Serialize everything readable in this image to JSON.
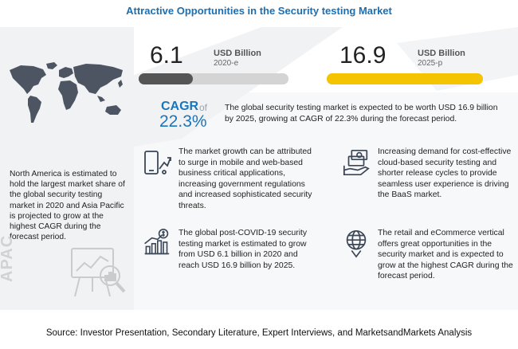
{
  "title": "Attractive Opportunities in the Security testing Market",
  "left": {
    "note": "North America is estimated to hold the largest market share of the global security testing market in 2020 and Asia Pacific is projected to grow at the highest CAGR during the forecast period.",
    "region_label": "APAC"
  },
  "metrics": {
    "start": {
      "value": "6.1",
      "unit": "USD Billion",
      "year": "2020-e",
      "bar_fraction": 0.361,
      "color": "#555555"
    },
    "end": {
      "value": "16.9",
      "unit": "USD Billion",
      "year": "2025-p",
      "bar_fraction": 1.0,
      "color": "#f5c400"
    }
  },
  "cagr": {
    "label": "CAGR",
    "of": "of",
    "value": "22.3%",
    "note": "The global security testing market is expected to be worth USD 16.9 billion by 2025, growing at CAGR of 22.3% during the forecast period."
  },
  "insights": [
    {
      "icon": "mobile-growth-icon",
      "text": "The market growth can be attributed to surge in mobile and web-based  business critical applications, increasing government regulations and increased sophisticated security threats."
    },
    {
      "icon": "money-growth-icon",
      "text": "The global post-COVID-19 security testing market is estimated to grow from USD 6.1 billion in 2020 and reach USD 16.9 billion by 2025."
    },
    {
      "icon": "cost-effective-cloud-icon",
      "text": "Increasing demand for cost-effective cloud-based security testing  and shorter release cycles to provide seamless user experience is driving the BaaS market."
    },
    {
      "icon": "globe-ecommerce-icon",
      "text": "The retail and eCommerce vertical offers great opportunities in the security market and is expected to grow at the highest CAGR during the forecast period."
    }
  ],
  "source": "Source: Investor Presentation, Secondary Literature, Expert Interviews, and MarketsandMarkets Analysis",
  "colors": {
    "accent_blue": "#1b75bb",
    "highlight_yellow": "#f5c400",
    "panel_gray": "#f1f2f4"
  }
}
